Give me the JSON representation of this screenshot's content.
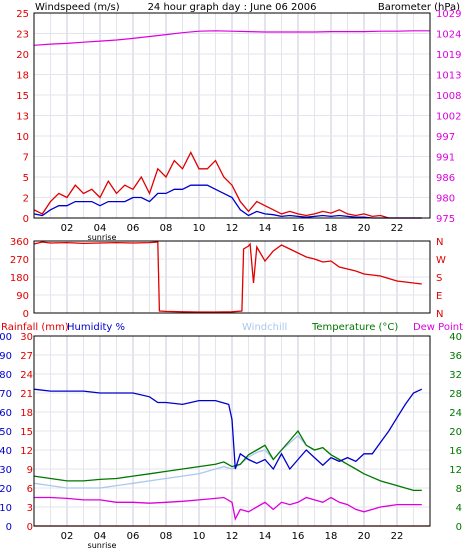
{
  "colors": {
    "red": "#e00000",
    "magenta": "#dd00dd",
    "blue": "#0000cc",
    "green": "#007700",
    "chill": "#aac8ee",
    "dark": "#000000",
    "grid": "#e4e4ee"
  },
  "chart_data": [
    {
      "type": "line",
      "title": "24 hour graph day : June 06 2006",
      "left_axis_label": "Windspeed (m/s)",
      "right_axis_label": "Barometer (hPa)",
      "x_ticks": [
        "02",
        "04",
        "06",
        "08",
        "10",
        "12",
        "14",
        "16",
        "18",
        "20",
        "22"
      ],
      "x_annotation": "sunrise",
      "left_ticks": [
        "0",
        "2",
        "5",
        "7",
        "10",
        "13",
        "15",
        "18",
        "20",
        "23",
        "25"
      ],
      "right_ticks": [
        "975",
        "980",
        "986",
        "991",
        "997",
        "1002",
        "1008",
        "1013",
        "1019",
        "1024",
        "1029"
      ],
      "xlim": [
        0,
        24
      ],
      "left_ylim": [
        0,
        25
      ],
      "right_ylim": [
        975,
        1029
      ],
      "series": [
        {
          "name": "gust",
          "axis": "left",
          "x": [
            0,
            0.5,
            1,
            1.5,
            2,
            2.5,
            3,
            3.5,
            4,
            4.5,
            5,
            5.5,
            6,
            6.5,
            7,
            7.5,
            8,
            8.5,
            9,
            9.5,
            10,
            10.5,
            11,
            11.5,
            12,
            12.5,
            13,
            13.5,
            14,
            14.5,
            15,
            15.5,
            16,
            16.5,
            17,
            17.5,
            18,
            18.5,
            19,
            19.5,
            20,
            20.5,
            21,
            21.5,
            22,
            22.5,
            23,
            23.5
          ],
          "y": [
            1,
            0.5,
            2,
            3,
            2.5,
            4,
            3,
            3.5,
            2.5,
            4.5,
            3,
            4,
            3.5,
            5,
            3,
            6,
            5,
            7,
            6,
            8,
            6,
            6,
            7,
            5,
            4,
            2,
            0.8,
            2,
            1.5,
            1,
            0.5,
            0.8,
            0.5,
            0.3,
            0.5,
            0.8,
            0.6,
            1,
            0.5,
            0.3,
            0.5,
            0.2,
            0.3,
            0,
            0,
            0,
            0,
            0
          ]
        },
        {
          "name": "windspeed",
          "axis": "left",
          "x": [
            0,
            0.5,
            1,
            1.5,
            2,
            2.5,
            3,
            3.5,
            4,
            4.5,
            5,
            5.5,
            6,
            6.5,
            7,
            7.5,
            8,
            8.5,
            9,
            9.5,
            10,
            10.5,
            11,
            11.5,
            12,
            12.5,
            13,
            13.5,
            14,
            14.5,
            15,
            15.5,
            16,
            16.5,
            17,
            17.5,
            18,
            18.5,
            19,
            19.5,
            20,
            20.5,
            21,
            21.5,
            22,
            22.5,
            23,
            23.5
          ],
          "y": [
            0.5,
            0.3,
            1,
            1.5,
            1.5,
            2,
            2,
            2,
            1.5,
            2,
            2,
            2,
            2.5,
            2.5,
            2,
            3,
            3,
            3.5,
            3.5,
            4,
            4,
            4,
            3.5,
            3,
            2.5,
            1,
            0.3,
            0.8,
            0.5,
            0.4,
            0.2,
            0.3,
            0.2,
            0.1,
            0.2,
            0.3,
            0.2,
            0.3,
            0.2,
            0.1,
            0.1,
            0,
            0,
            0,
            0,
            0,
            0,
            0
          ]
        },
        {
          "name": "barometer",
          "axis": "right",
          "x": [
            0,
            1,
            2,
            3,
            4,
            5,
            6,
            7,
            8,
            9,
            10,
            11,
            12,
            13,
            14,
            15,
            16,
            17,
            18,
            19,
            20,
            21,
            22,
            23,
            24
          ],
          "y": [
            1020.5,
            1020.8,
            1021.0,
            1021.3,
            1021.6,
            1021.9,
            1022.3,
            1022.8,
            1023.3,
            1023.8,
            1024.2,
            1024.3,
            1024.2,
            1024.1,
            1024.0,
            1024.0,
            1024.0,
            1024.0,
            1024.1,
            1024.1,
            1024.1,
            1024.2,
            1024.2,
            1024.3,
            1024.3
          ]
        }
      ]
    },
    {
      "type": "line",
      "left_ticks": [
        "360",
        "270",
        "180",
        "90",
        "0"
      ],
      "right_ticks": [
        "N",
        "W",
        "S",
        "E",
        "N"
      ],
      "xlim": [
        0,
        24
      ],
      "ylim": [
        0,
        360
      ],
      "series": [
        {
          "name": "wind direction",
          "x": [
            0,
            0.5,
            1,
            2,
            3,
            4,
            5,
            6,
            7,
            7.5,
            7.6,
            8,
            9,
            10,
            11,
            12,
            12.6,
            12.7,
            13,
            13.1,
            13.3,
            13.5,
            14,
            14.5,
            15,
            15.5,
            16,
            16.5,
            17,
            17.5,
            18,
            18.5,
            19,
            19.5,
            20,
            21,
            22,
            23,
            23.5
          ],
          "y": [
            345,
            355,
            350,
            352,
            348,
            350,
            352,
            350,
            352,
            355,
            10,
            8,
            6,
            5,
            5,
            6,
            10,
            320,
            335,
            345,
            150,
            330,
            260,
            310,
            340,
            320,
            300,
            280,
            270,
            255,
            260,
            230,
            220,
            210,
            195,
            185,
            160,
            150,
            145
          ]
        }
      ]
    },
    {
      "type": "line",
      "labels": [
        "Rainfall (mm)",
        "Humidity %",
        "Windchill",
        "Temperature (°C)",
        "Dew Point"
      ],
      "x_ticks": [
        "02",
        "04",
        "06",
        "08",
        "10",
        "12",
        "14",
        "16",
        "18",
        "20",
        "22"
      ],
      "x_annotation": "sunrise",
      "rain_ticks": [
        "0",
        "3",
        "6",
        "9",
        "12",
        "15",
        "18",
        "21",
        "24",
        "27",
        "30"
      ],
      "humidity_ticks": [
        "0",
        "10",
        "20",
        "30",
        "40",
        "50",
        "60",
        "70",
        "80",
        "90",
        "100"
      ],
      "temp_ticks": [
        "0",
        "4",
        "8",
        "12",
        "16",
        "20",
        "24",
        "28",
        "32",
        "36",
        "40"
      ],
      "xlim": [
        0,
        24
      ],
      "humidity_ylim": [
        0,
        100
      ],
      "temp_ylim": [
        0,
        40
      ],
      "series": [
        {
          "name": "humidity",
          "axis": "humidity",
          "x": [
            0,
            1,
            2,
            3,
            4,
            5,
            6,
            7,
            7.5,
            8,
            9,
            10,
            11,
            11.8,
            12,
            12.2,
            12.5,
            13,
            13.5,
            14,
            14.5,
            15,
            15.5,
            16,
            16.5,
            17,
            17.5,
            18,
            18.5,
            19,
            19.5,
            20,
            20.5,
            21,
            21.5,
            22,
            22.5,
            23,
            23.5
          ],
          "y": [
            72,
            71,
            71,
            71,
            70,
            70,
            70,
            68,
            65,
            65,
            64,
            66,
            66,
            64,
            56,
            30,
            38,
            35,
            33,
            35,
            30,
            38,
            30,
            35,
            40,
            36,
            32,
            36,
            34,
            36,
            34,
            38,
            38,
            44,
            50,
            57,
            64,
            70,
            72
          ]
        },
        {
          "name": "rainfall",
          "axis": "humidity",
          "x": [
            0,
            24
          ],
          "y": [
            0,
            0
          ]
        },
        {
          "name": "temperature",
          "axis": "temp",
          "x": [
            0,
            1,
            2,
            3,
            4,
            5,
            6,
            7,
            8,
            9,
            10,
            11,
            11.5,
            12,
            12.5,
            13,
            13.5,
            14,
            14.5,
            15,
            15.5,
            16,
            16.5,
            17,
            17.5,
            18,
            18.5,
            19,
            19.5,
            20,
            21,
            22,
            23,
            23.5
          ],
          "y": [
            10.5,
            10,
            9.5,
            9.5,
            9.8,
            10,
            10.5,
            11,
            11.5,
            12,
            12.5,
            13,
            13.5,
            12.5,
            13,
            15,
            16,
            17,
            14,
            16,
            18,
            20,
            17,
            16,
            16.5,
            15,
            14,
            13,
            12,
            11,
            9.5,
            8.5,
            7.5,
            7.5
          ]
        },
        {
          "name": "windchill",
          "axis": "temp",
          "x": [
            0,
            1,
            2,
            3,
            4,
            5,
            6,
            7,
            8,
            9,
            10,
            11,
            11.5,
            12,
            12.5,
            13,
            13.5,
            14,
            14.5,
            15,
            15.5,
            16,
            16.5,
            17
          ],
          "y": [
            9,
            8.5,
            8,
            8,
            8,
            8.5,
            9,
            9.5,
            10,
            10.5,
            11,
            12,
            12.5,
            12,
            13,
            14.5,
            15.5,
            16,
            14,
            16,
            17.5,
            19,
            17,
            16
          ]
        },
        {
          "name": "dew point",
          "axis": "temp",
          "x": [
            0,
            1,
            2,
            3,
            4,
            5,
            6,
            7,
            8,
            9,
            10,
            11,
            11.5,
            12,
            12.2,
            12.5,
            13,
            13.5,
            14,
            14.5,
            15,
            15.5,
            16,
            16.5,
            17,
            17.5,
            18,
            18.5,
            19,
            19.5,
            20,
            21,
            22,
            23,
            23.5
          ],
          "y": [
            6,
            6,
            5.8,
            5.5,
            5.5,
            5,
            5,
            4.8,
            5,
            5.2,
            5.5,
            5.8,
            6,
            5,
            1.5,
            3.5,
            3,
            4,
            5,
            3.5,
            5,
            4.5,
            5,
            6,
            5.5,
            5,
            6,
            5,
            4.5,
            3.5,
            3,
            4,
            4.5,
            4.5,
            4.5
          ]
        }
      ]
    }
  ]
}
